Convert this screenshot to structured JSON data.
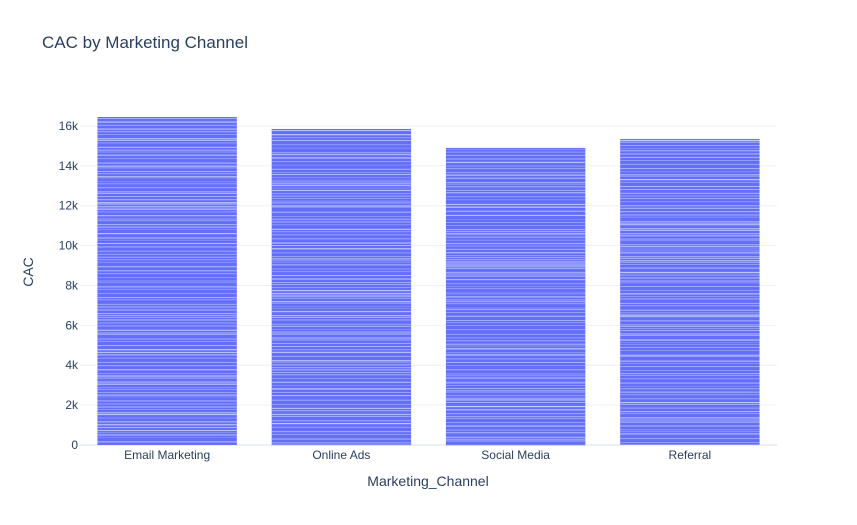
{
  "chart_data": {
    "type": "bar",
    "title": "CAC by Marketing Channel",
    "xlabel": "Marketing_Channel",
    "ylabel": "CAC",
    "categories": [
      "Email Marketing",
      "Online Ads",
      "Social Media",
      "Referral"
    ],
    "values": [
      16450,
      15850,
      14900,
      15350
    ],
    "ylim": [
      0,
      16450
    ],
    "yticks": [
      0,
      2000,
      4000,
      6000,
      8000,
      10000,
      12000,
      14000,
      16000
    ],
    "ytick_labels": [
      "0",
      "2k",
      "4k",
      "6k",
      "8k",
      "10k",
      "12k",
      "14k",
      "16k"
    ],
    "grid": true,
    "bar_color": "#636efa",
    "bar_stripe_color": "#c5c9fc"
  }
}
